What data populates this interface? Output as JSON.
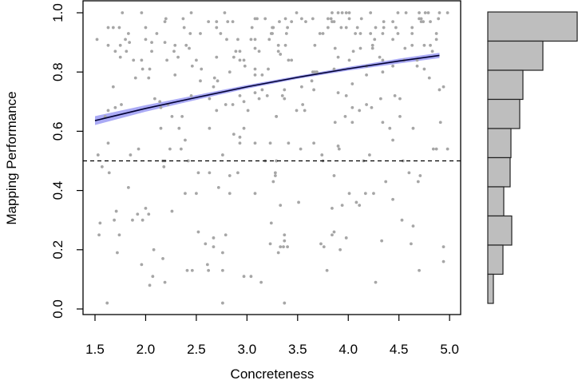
{
  "chart_data": [
    {
      "type": "scatter",
      "xlabel": "Concreteness",
      "ylabel": "Mapping Performance",
      "xlim": [
        1.5,
        5.0
      ],
      "ylim": [
        0.0,
        1.0
      ],
      "x_ticks": [
        "1.5",
        "2.0",
        "2.5",
        "3.0",
        "3.5",
        "4.0",
        "4.5",
        "5.0"
      ],
      "y_ticks": [
        "0.0",
        "0.2",
        "0.4",
        "0.6",
        "0.8",
        "1.0"
      ],
      "grid": false,
      "reference_line": {
        "y": 0.5,
        "style": "dashed"
      },
      "colors": {
        "points": "#a6a6a6",
        "fit": "#000033",
        "band": "#aaaaf5",
        "hist": "#bebebe"
      },
      "points": [
        [
          1.57,
          0.48
        ],
        [
          1.64,
          0.46
        ],
        [
          1.83,
          0.41
        ],
        [
          1.71,
          0.33
        ],
        [
          1.69,
          0.3
        ],
        [
          1.55,
          0.29
        ],
        [
          1.54,
          0.25
        ],
        [
          1.74,
          0.25
        ],
        [
          1.72,
          0.19
        ],
        [
          1.62,
          0.02
        ],
        [
          1.87,
          0.3
        ],
        [
          1.92,
          0.32
        ],
        [
          1.97,
          0.3
        ],
        [
          2.0,
          0.34
        ],
        [
          2.03,
          0.32
        ],
        [
          1.96,
          0.15
        ],
        [
          2.08,
          0.2
        ],
        [
          2.07,
          0.11
        ],
        [
          2.04,
          0.08
        ],
        [
          2.17,
          0.17
        ],
        [
          2.19,
          0.09
        ],
        [
          2.18,
          0.48
        ],
        [
          2.26,
          0.33
        ],
        [
          2.39,
          0.39
        ],
        [
          2.5,
          0.39
        ],
        [
          2.52,
          0.46
        ],
        [
          2.63,
          0.46
        ],
        [
          2.52,
          0.26
        ],
        [
          2.59,
          0.22
        ],
        [
          2.67,
          0.24
        ],
        [
          2.67,
          0.21
        ],
        [
          2.79,
          0.25
        ],
        [
          2.76,
          0.19
        ],
        [
          2.41,
          0.13
        ],
        [
          2.46,
          0.13
        ],
        [
          2.61,
          0.15
        ],
        [
          2.62,
          0.13
        ],
        [
          2.76,
          0.13
        ],
        [
          2.76,
          0.02
        ],
        [
          2.72,
          0.41
        ],
        [
          2.83,
          0.45
        ],
        [
          2.83,
          0.39
        ],
        [
          2.91,
          0.46
        ],
        [
          3.08,
          0.39
        ],
        [
          2.97,
          0.11
        ],
        [
          3.04,
          0.11
        ],
        [
          3.14,
          0.09
        ],
        [
          3.28,
          0.46
        ],
        [
          3.28,
          0.45
        ],
        [
          3.26,
          0.43
        ],
        [
          3.33,
          0.35
        ],
        [
          3.24,
          0.29
        ],
        [
          3.23,
          0.22
        ],
        [
          3.37,
          0.25
        ],
        [
          3.37,
          0.23
        ],
        [
          3.33,
          0.21
        ],
        [
          3.36,
          0.21
        ],
        [
          3.4,
          0.21
        ],
        [
          3.31,
          0.19
        ],
        [
          3.37,
          0.02
        ],
        [
          3.51,
          0.36
        ],
        [
          3.86,
          0.45
        ],
        [
          3.84,
          0.34
        ],
        [
          3.94,
          0.35
        ],
        [
          4.01,
          0.39
        ],
        [
          4.08,
          0.36
        ],
        [
          4.11,
          0.35
        ],
        [
          4.17,
          0.39
        ],
        [
          4.25,
          0.39
        ],
        [
          4.37,
          0.43
        ],
        [
          4.44,
          0.37
        ],
        [
          4.6,
          0.46
        ],
        [
          4.71,
          0.45
        ],
        [
          4.69,
          0.43
        ],
        [
          4.53,
          0.3
        ],
        [
          4.64,
          0.28
        ],
        [
          4.62,
          0.22
        ],
        [
          4.7,
          0.13
        ],
        [
          4.94,
          0.21
        ],
        [
          4.94,
          0.16
        ],
        [
          3.73,
          0.22
        ],
        [
          3.76,
          0.21
        ],
        [
          3.84,
          0.25
        ],
        [
          3.86,
          0.26
        ],
        [
          3.98,
          0.24
        ],
        [
          3.92,
          0.2
        ],
        [
          3.79,
          0.13
        ],
        [
          4.33,
          0.23
        ],
        [
          4.27,
          0.09
        ],
        [
          2.17,
          0.5
        ],
        [
          2.19,
          0.5
        ],
        [
          2.42,
          0.5
        ],
        [
          3.18,
          0.5
        ],
        [
          3.29,
          0.5
        ],
        [
          3.75,
          0.5
        ],
        [
          4.15,
          0.5
        ],
        [
          4.54,
          0.5
        ],
        [
          1.77,
          1.0
        ],
        [
          1.96,
          1.0
        ],
        [
          2.45,
          1.0
        ],
        [
          2.78,
          1.0
        ],
        [
          2.2,
          0.98
        ],
        [
          2.37,
          0.98
        ],
        [
          2.19,
          0.97
        ],
        [
          2.62,
          0.97
        ],
        [
          2.7,
          0.97
        ],
        [
          2.81,
          0.97
        ],
        [
          2.86,
          0.97
        ],
        [
          3.08,
          0.98
        ],
        [
          3.1,
          0.98
        ],
        [
          3.18,
          0.98
        ],
        [
          1.63,
          0.95
        ],
        [
          1.68,
          0.95
        ],
        [
          1.74,
          0.95
        ],
        [
          2.0,
          0.95
        ],
        [
          2.38,
          0.95
        ],
        [
          2.7,
          0.95
        ],
        [
          3.05,
          0.95
        ],
        [
          3.26,
          0.95
        ],
        [
          1.52,
          0.91
        ],
        [
          1.83,
          0.93
        ],
        [
          2.11,
          0.93
        ],
        [
          2.44,
          0.93
        ],
        [
          2.54,
          0.93
        ],
        [
          2.74,
          0.93
        ],
        [
          3.25,
          0.93
        ],
        [
          1.63,
          0.89
        ],
        [
          1.75,
          0.89
        ],
        [
          1.8,
          0.91
        ],
        [
          1.84,
          0.9
        ],
        [
          2.0,
          0.91
        ],
        [
          2.06,
          0.9
        ],
        [
          2.19,
          0.9
        ],
        [
          2.29,
          0.89
        ],
        [
          2.4,
          0.89
        ],
        [
          2.8,
          0.91
        ],
        [
          2.91,
          0.91
        ],
        [
          3.04,
          0.91
        ],
        [
          3.08,
          0.91
        ],
        [
          3.22,
          0.91
        ],
        [
          1.7,
          0.87
        ],
        [
          1.81,
          0.87
        ],
        [
          1.75,
          0.85
        ],
        [
          2.06,
          0.87
        ],
        [
          2.28,
          0.87
        ],
        [
          2.43,
          0.88
        ],
        [
          2.32,
          0.85
        ],
        [
          2.7,
          0.85
        ],
        [
          2.87,
          0.85
        ],
        [
          2.89,
          0.87
        ],
        [
          2.93,
          0.87
        ],
        [
          3.08,
          0.88
        ],
        [
          3.12,
          0.87
        ],
        [
          1.88,
          0.84
        ],
        [
          1.96,
          0.84
        ],
        [
          2.21,
          0.84
        ],
        [
          2.5,
          0.84
        ],
        [
          2.93,
          0.84
        ],
        [
          2.97,
          0.84
        ],
        [
          1.97,
          0.81
        ],
        [
          2.04,
          0.81
        ],
        [
          2.46,
          0.82
        ],
        [
          2.55,
          0.81
        ],
        [
          2.83,
          0.8
        ],
        [
          2.98,
          0.82
        ],
        [
          3.08,
          0.81
        ],
        [
          3.21,
          0.81
        ],
        [
          1.9,
          0.78
        ],
        [
          2.03,
          0.78
        ],
        [
          2.29,
          0.79
        ],
        [
          2.54,
          0.77
        ],
        [
          2.68,
          0.78
        ],
        [
          2.71,
          0.77
        ],
        [
          3.08,
          0.79
        ],
        [
          3.15,
          0.79
        ],
        [
          1.68,
          0.75
        ],
        [
          2.67,
          0.75
        ],
        [
          2.45,
          0.72
        ],
        [
          2.93,
          0.72
        ],
        [
          3.08,
          0.73
        ],
        [
          3.15,
          0.74
        ],
        [
          3.2,
          0.72
        ],
        [
          2.09,
          0.71
        ],
        [
          2.14,
          0.7
        ],
        [
          2.63,
          0.71
        ],
        [
          2.97,
          0.7
        ],
        [
          3.12,
          0.71
        ],
        [
          1.7,
          0.68
        ],
        [
          1.76,
          0.69
        ],
        [
          2.15,
          0.68
        ],
        [
          2.22,
          0.69
        ],
        [
          1.63,
          0.67
        ],
        [
          2.7,
          0.67
        ],
        [
          2.79,
          0.69
        ],
        [
          2.86,
          0.69
        ],
        [
          3.01,
          0.67
        ],
        [
          1.6,
          0.65
        ],
        [
          3.29,
          0.65
        ],
        [
          2.26,
          0.65
        ],
        [
          2.36,
          0.65
        ],
        [
          2.15,
          0.61
        ],
        [
          2.33,
          0.61
        ],
        [
          2.63,
          0.61
        ],
        [
          2.97,
          0.61
        ],
        [
          2.87,
          0.59
        ],
        [
          2.93,
          0.58
        ],
        [
          2.39,
          0.57
        ],
        [
          1.63,
          0.56
        ],
        [
          2.93,
          0.56
        ],
        [
          3.08,
          0.56
        ],
        [
          3.23,
          0.56
        ],
        [
          1.93,
          0.54
        ],
        [
          2.24,
          0.54
        ],
        [
          2.35,
          0.54
        ],
        [
          1.53,
          0.52
        ],
        [
          1.85,
          0.52
        ],
        [
          2.76,
          0.52
        ],
        [
          3.49,
          1.0
        ],
        [
          3.84,
          1.0
        ],
        [
          3.9,
          1.0
        ],
        [
          3.94,
          1.0
        ],
        [
          3.98,
          1.0
        ],
        [
          4.01,
          1.0
        ],
        [
          4.22,
          1.0
        ],
        [
          4.49,
          1.0
        ],
        [
          4.57,
          1.0
        ],
        [
          4.7,
          1.0
        ],
        [
          4.76,
          1.0
        ],
        [
          4.79,
          1.0
        ],
        [
          4.9,
          1.0
        ],
        [
          4.98,
          1.0
        ],
        [
          3.38,
          0.98
        ],
        [
          3.54,
          0.98
        ],
        [
          3.65,
          0.98
        ],
        [
          3.8,
          0.98
        ],
        [
          3.83,
          0.98
        ],
        [
          4.01,
          0.98
        ],
        [
          4.13,
          0.98
        ],
        [
          4.7,
          0.98
        ],
        [
          4.72,
          0.98
        ],
        [
          4.89,
          0.98
        ],
        [
          3.32,
          0.97
        ],
        [
          3.44,
          0.97
        ],
        [
          3.58,
          0.97
        ],
        [
          3.84,
          0.97
        ],
        [
          3.86,
          0.97
        ],
        [
          4.35,
          0.97
        ],
        [
          4.44,
          0.97
        ],
        [
          4.72,
          0.97
        ],
        [
          4.74,
          0.97
        ],
        [
          4.81,
          0.97
        ],
        [
          3.25,
          0.95
        ],
        [
          3.4,
          0.95
        ],
        [
          3.8,
          0.95
        ],
        [
          3.93,
          0.95
        ],
        [
          3.98,
          0.95
        ],
        [
          4.09,
          0.95
        ],
        [
          4.27,
          0.95
        ],
        [
          4.35,
          0.95
        ],
        [
          4.47,
          0.95
        ],
        [
          4.63,
          0.95
        ],
        [
          3.24,
          0.93
        ],
        [
          3.39,
          0.93
        ],
        [
          3.72,
          0.93
        ],
        [
          3.75,
          0.93
        ],
        [
          4.07,
          0.93
        ],
        [
          4.12,
          0.93
        ],
        [
          4.22,
          0.93
        ],
        [
          4.34,
          0.93
        ],
        [
          4.49,
          0.93
        ],
        [
          4.63,
          0.93
        ],
        [
          4.87,
          0.93
        ],
        [
          4.26,
          0.91
        ],
        [
          4.44,
          0.91
        ],
        [
          4.87,
          0.91
        ],
        [
          3.31,
          0.89
        ],
        [
          3.38,
          0.89
        ],
        [
          3.67,
          0.89
        ],
        [
          4.24,
          0.89
        ],
        [
          4.63,
          0.89
        ],
        [
          4.75,
          0.89
        ],
        [
          4.81,
          0.89
        ],
        [
          3.31,
          0.87
        ],
        [
          3.87,
          0.88
        ],
        [
          4.05,
          0.87
        ],
        [
          4.12,
          0.88
        ],
        [
          4.24,
          0.88
        ],
        [
          4.56,
          0.88
        ],
        [
          4.83,
          0.87
        ],
        [
          3.33,
          0.86
        ],
        [
          3.9,
          0.85
        ],
        [
          4.31,
          0.85
        ],
        [
          3.41,
          0.84
        ],
        [
          3.44,
          0.84
        ],
        [
          4.01,
          0.84
        ],
        [
          4.34,
          0.84
        ],
        [
          4.55,
          0.84
        ],
        [
          4.68,
          0.84
        ],
        [
          4.18,
          0.82
        ],
        [
          4.44,
          0.82
        ],
        [
          4.68,
          0.82
        ],
        [
          3.65,
          0.8
        ],
        [
          3.67,
          0.8
        ],
        [
          3.69,
          0.8
        ],
        [
          3.86,
          0.81
        ],
        [
          4.34,
          0.8
        ],
        [
          4.75,
          0.81
        ],
        [
          4.18,
          0.79
        ],
        [
          4.8,
          0.78
        ],
        [
          3.64,
          0.77
        ],
        [
          4.04,
          0.76
        ],
        [
          3.54,
          0.75
        ],
        [
          3.37,
          0.74
        ],
        [
          3.66,
          0.74
        ],
        [
          4.9,
          0.74
        ],
        [
          4.94,
          0.75
        ],
        [
          3.35,
          0.72
        ],
        [
          3.9,
          0.73
        ],
        [
          3.98,
          0.72
        ],
        [
          4.46,
          0.72
        ],
        [
          3.37,
          0.71
        ],
        [
          4.32,
          0.71
        ],
        [
          4.51,
          0.71
        ],
        [
          4.18,
          0.69
        ],
        [
          4.23,
          0.68
        ],
        [
          4.04,
          0.68
        ],
        [
          3.55,
          0.69
        ],
        [
          3.49,
          0.67
        ],
        [
          3.57,
          0.67
        ],
        [
          4.11,
          0.67
        ],
        [
          3.29,
          0.65
        ],
        [
          3.97,
          0.65
        ],
        [
          4.51,
          0.65
        ],
        [
          3.87,
          0.63
        ],
        [
          4.04,
          0.63
        ],
        [
          4.34,
          0.63
        ],
        [
          4.91,
          0.63
        ],
        [
          4.41,
          0.61
        ],
        [
          4.64,
          0.61
        ],
        [
          4.44,
          0.57
        ],
        [
          3.41,
          0.56
        ],
        [
          3.66,
          0.56
        ],
        [
          3.9,
          0.55
        ],
        [
          3.91,
          0.54
        ],
        [
          3.53,
          0.54
        ],
        [
          4.84,
          0.54
        ],
        [
          4.87,
          0.54
        ],
        [
          4.98,
          0.54
        ],
        [
          3.74,
          0.52
        ],
        [
          4.21,
          0.52
        ]
      ],
      "fit": {
        "x": [
          1.5,
          2.0,
          2.5,
          3.0,
          3.5,
          4.0,
          4.5,
          4.9
        ],
        "y": [
          0.636,
          0.677,
          0.714,
          0.75,
          0.782,
          0.811,
          0.837,
          0.856
        ],
        "lower": [
          0.621,
          0.666,
          0.706,
          0.744,
          0.777,
          0.805,
          0.829,
          0.847
        ],
        "upper": [
          0.651,
          0.688,
          0.722,
          0.756,
          0.787,
          0.817,
          0.845,
          0.865
        ]
      }
    },
    {
      "type": "bar",
      "orientation": "horizontal",
      "bins": [
        "0.9-1.0",
        "0.8-0.9",
        "0.7-0.8",
        "0.6-0.7",
        "0.5-0.6",
        "0.4-0.5",
        "0.3-0.4",
        "0.2-0.3",
        "0.1-0.2",
        "0.0-0.1"
      ],
      "values": [
        112,
        69,
        44,
        40,
        29,
        28,
        20,
        30,
        19,
        7
      ]
    }
  ]
}
